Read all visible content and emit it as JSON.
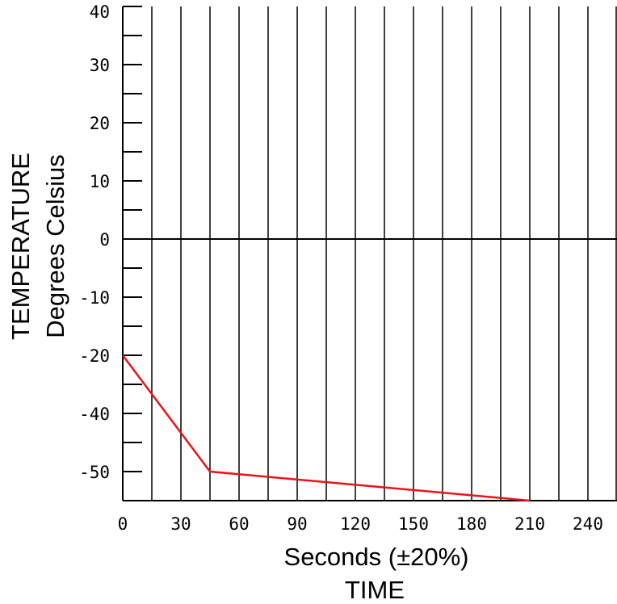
{
  "chart_data": {
    "type": "line",
    "xlabel": "Seconds (±20%)",
    "xlabel2": "TIME",
    "ylabel": "TEMPERATURE",
    "ylabel2": "Degrees Celsius",
    "x_tick_labels": [
      "0",
      "30",
      "60",
      "90",
      "120",
      "150",
      "180",
      "210",
      "240"
    ],
    "y_tick_labels": [
      "40",
      "30",
      "20",
      "10",
      "0",
      "-10",
      "-20",
      "-40",
      "-50"
    ],
    "xlim": [
      0,
      255
    ],
    "series": [
      {
        "color": "#e8141b",
        "x": [
          0,
          45,
          210
        ],
        "y": [
          -20,
          -50,
          -55
        ]
      }
    ],
    "grid": true
  }
}
